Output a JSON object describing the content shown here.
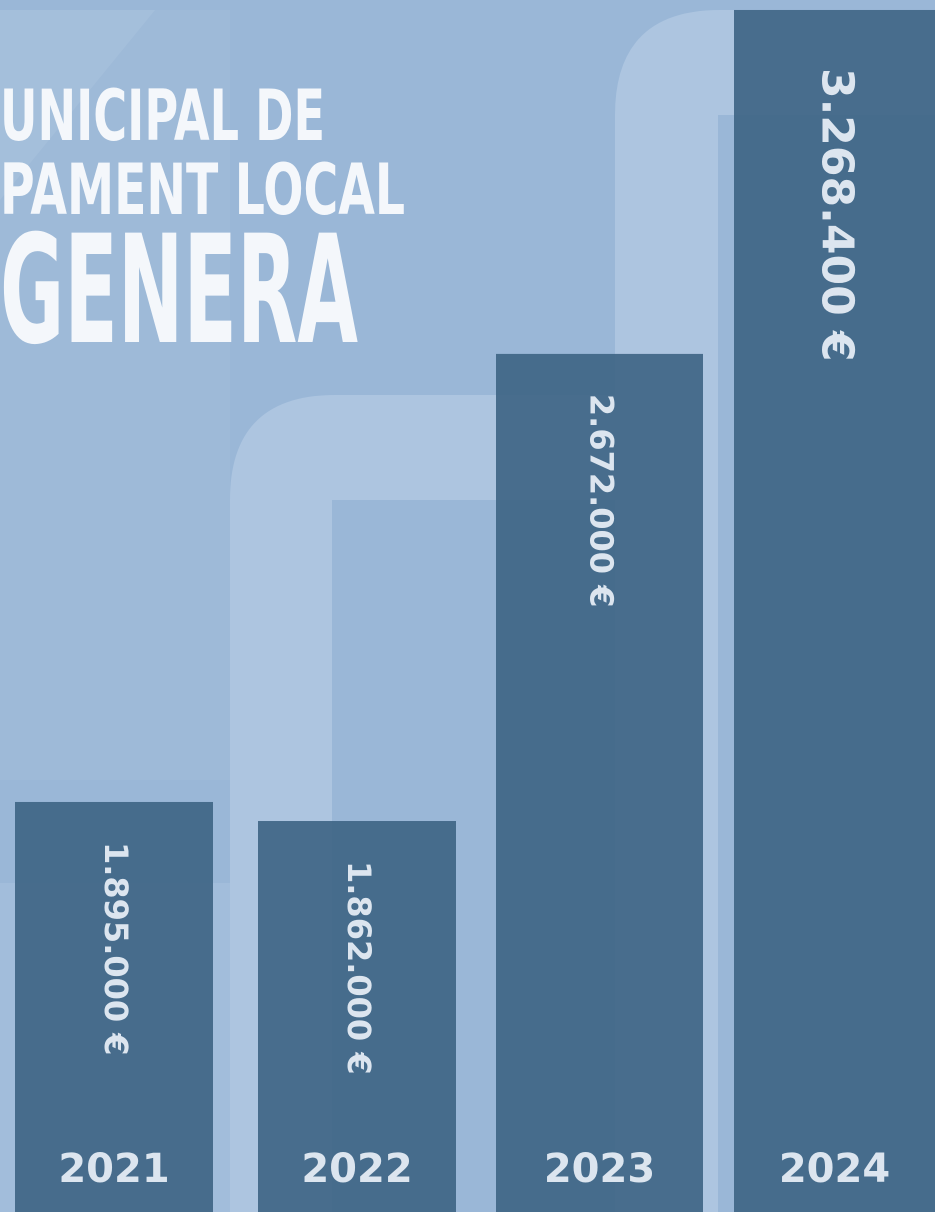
{
  "chart_data": {
    "type": "bar",
    "title_lines": [
      "UNICIPAL DE",
      "PAMENT LOCAL",
      "GENERA"
    ],
    "categories": [
      "2021",
      "2022",
      "2023",
      "2024"
    ],
    "values": [
      1895000,
      1862000,
      2672000,
      3268400
    ],
    "value_labels": [
      "1.895.000 €",
      "1.862.000 €",
      "2.672.000 €",
      "3.268.400 €"
    ],
    "color": "#3f6586",
    "ylim": [
      1184000,
      3285700
    ]
  }
}
